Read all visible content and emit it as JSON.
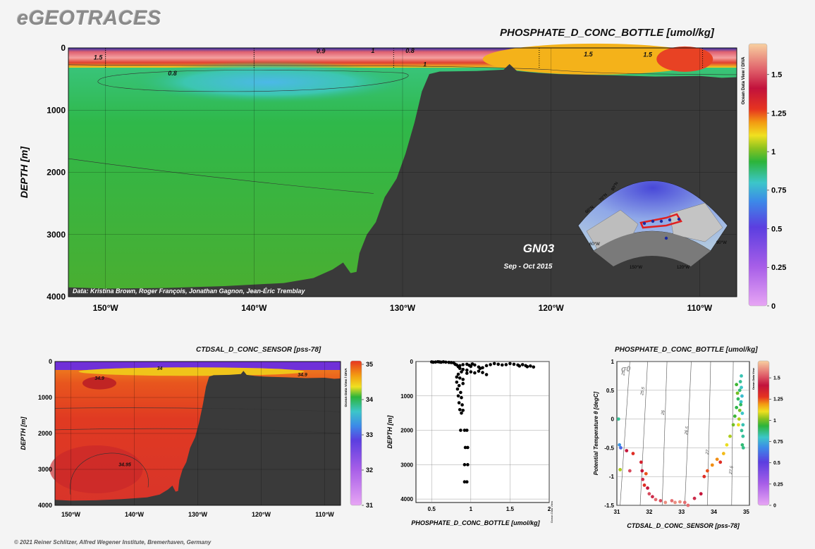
{
  "header": {
    "logo": "eGEOTRACES"
  },
  "footer": {
    "copyright": "© 2021 Reiner Schlitzer, Alfred Wegener Institute, Bremerhaven, Germany"
  },
  "colors": {
    "land": "#3a3a3a",
    "background": "#f4f4f4"
  },
  "chart_data": [
    {
      "id": "main_section",
      "type": "heatmap",
      "title": "PHOSPHATE_D_CONC_BOTTLE [umol/kg]",
      "ylabel": "DEPTH [m]",
      "xlabel": "",
      "x_ticks": [
        "150°W",
        "140°W",
        "130°W",
        "120°W",
        "110°W"
      ],
      "x_tick_values": [
        -150,
        -140,
        -130,
        -120,
        -110
      ],
      "y_ticks": [
        "0",
        "1000",
        "2000",
        "3000",
        "4000"
      ],
      "y_tick_values": [
        0,
        1000,
        2000,
        3000,
        4000
      ],
      "xlim": [
        -152.5,
        -107.5
      ],
      "ylim": [
        0,
        4000
      ],
      "y_reversed": true,
      "colorbar": {
        "ticks": [
          "0",
          "0.25",
          "0.5",
          "0.75",
          "1",
          "1.25",
          "1.5"
        ],
        "values": [
          0,
          0.25,
          0.5,
          0.75,
          1,
          1.25,
          1.5
        ],
        "range": [
          0,
          1.7
        ]
      },
      "contour_labels": [
        {
          "text": "0.9",
          "lon": -135.5,
          "depth": 50
        },
        {
          "text": "1",
          "lon": -132,
          "depth": 45
        },
        {
          "text": "0.8",
          "lon": -129.5,
          "depth": 45
        },
        {
          "text": "1.5",
          "lon": -150.5,
          "depth": 155
        },
        {
          "text": "0.8",
          "lon": -145.5,
          "depth": 410
        },
        {
          "text": "1",
          "lon": -128.5,
          "depth": 265
        },
        {
          "text": "1.5",
          "lon": -117.5,
          "depth": 100
        },
        {
          "text": "1.5",
          "lon": -113.5,
          "depth": 110
        }
      ],
      "annotations": {
        "section": "GN03",
        "date": "Sep - Oct 2015",
        "credits": "Data: Kristina Brown, Roger François, Jonathan Gagnon, Jean-Éric Tremblay",
        "odv": "Ocean Data View / DIVA"
      },
      "map_labels": [
        "80°N",
        "70°N",
        "60°N",
        "150°W",
        "120°W",
        "90°W",
        "60°W"
      ],
      "bathymetry": [
        [
          -152.5,
          3850
        ],
        [
          -150,
          3870
        ],
        [
          -146,
          3860
        ],
        [
          -142,
          3830
        ],
        [
          -138,
          3780
        ],
        [
          -136,
          3700
        ],
        [
          -134.7,
          3560
        ],
        [
          -134,
          3450
        ],
        [
          -133.5,
          3620
        ],
        [
          -133.1,
          3600
        ],
        [
          -132.9,
          3300
        ],
        [
          -132.4,
          3000
        ],
        [
          -131.8,
          2800
        ],
        [
          -131.2,
          2400
        ],
        [
          -130.4,
          2100
        ],
        [
          -129.8,
          1700
        ],
        [
          -129.2,
          1200
        ],
        [
          -128.7,
          700
        ],
        [
          -128.2,
          420
        ],
        [
          -127.5,
          380
        ],
        [
          -125,
          370
        ],
        [
          -123.2,
          350
        ],
        [
          -122.8,
          260
        ],
        [
          -122.3,
          370
        ],
        [
          -121,
          400
        ],
        [
          -119.5,
          420
        ],
        [
          -116,
          440
        ],
        [
          -113,
          460
        ],
        [
          -110,
          450
        ],
        [
          -108.5,
          480
        ],
        [
          -107.5,
          470
        ]
      ]
    },
    {
      "id": "salinity_section",
      "type": "heatmap",
      "title": "CTDSAL_D_CONC_SENSOR [pss-78]",
      "ylabel": "DEPTH [m]",
      "x_ticks": [
        "150°W",
        "140°W",
        "130°W",
        "120°W",
        "110°W"
      ],
      "x_tick_values": [
        -150,
        -140,
        -130,
        -120,
        -110
      ],
      "y_ticks": [
        "0",
        "1000",
        "2000",
        "3000",
        "4000"
      ],
      "y_tick_values": [
        0,
        1000,
        2000,
        3000,
        4000
      ],
      "xlim": [
        -152.5,
        -107.5
      ],
      "ylim": [
        0,
        4000
      ],
      "colorbar": {
        "ticks": [
          "31",
          "32",
          "33",
          "34",
          "35"
        ],
        "values": [
          31,
          32,
          33,
          34,
          35
        ],
        "range": [
          31,
          35.1
        ]
      },
      "contour_labels": [
        {
          "text": "34.9",
          "lon": -145.5,
          "depth": 450
        },
        {
          "text": "34",
          "lon": -136,
          "depth": 180
        },
        {
          "text": "34.9",
          "lon": -113.5,
          "depth": 350
        },
        {
          "text": "34.95",
          "lon": -141.5,
          "depth": 2850
        }
      ],
      "odv": "Ocean Data View / DIVA"
    },
    {
      "id": "phosphate_profile",
      "type": "scatter",
      "xlabel": "PHOSPHATE_D_CONC_BOTTLE [umol/kg]",
      "ylabel": "DEPTH [m]",
      "x_ticks": [
        "0.5",
        "1",
        "1.5",
        "2"
      ],
      "x_tick_values": [
        0.5,
        1,
        1.5,
        2
      ],
      "y_ticks": [
        "0",
        "1000",
        "2000",
        "3000",
        "4000"
      ],
      "y_tick_values": [
        0,
        1000,
        2000,
        3000,
        4000
      ],
      "xlim": [
        0.3,
        2.0
      ],
      "ylim": [
        0,
        4100
      ],
      "odv": "Ocean Data View",
      "points": [
        [
          0.5,
          10
        ],
        [
          0.52,
          20
        ],
        [
          0.55,
          15
        ],
        [
          0.58,
          5
        ],
        [
          0.6,
          12
        ],
        [
          0.62,
          20
        ],
        [
          0.65,
          8
        ],
        [
          0.68,
          18
        ],
        [
          0.72,
          25
        ],
        [
          0.75,
          30
        ],
        [
          0.78,
          35
        ],
        [
          0.8,
          80
        ],
        [
          0.82,
          100
        ],
        [
          0.84,
          150
        ],
        [
          0.86,
          120
        ],
        [
          0.9,
          90
        ],
        [
          0.95,
          80
        ],
        [
          0.98,
          110
        ],
        [
          1.0,
          140
        ],
        [
          1.02,
          70
        ],
        [
          1.05,
          100
        ],
        [
          1.1,
          160
        ],
        [
          1.12,
          200
        ],
        [
          1.15,
          180
        ],
        [
          1.2,
          120
        ],
        [
          1.25,
          90
        ],
        [
          1.3,
          60
        ],
        [
          1.35,
          80
        ],
        [
          1.4,
          100
        ],
        [
          1.45,
          90
        ],
        [
          1.5,
          60
        ],
        [
          1.55,
          80
        ],
        [
          1.6,
          100
        ],
        [
          1.62,
          130
        ],
        [
          1.66,
          90
        ],
        [
          1.7,
          120
        ],
        [
          1.72,
          150
        ],
        [
          1.76,
          130
        ],
        [
          1.8,
          160
        ],
        [
          0.86,
          200
        ],
        [
          0.9,
          230
        ],
        [
          0.95,
          250
        ],
        [
          1.0,
          300
        ],
        [
          1.05,
          330
        ],
        [
          1.1,
          280
        ],
        [
          1.15,
          320
        ],
        [
          1.2,
          380
        ],
        [
          0.95,
          340
        ],
        [
          0.88,
          300
        ],
        [
          0.84,
          370
        ],
        [
          0.82,
          450
        ],
        [
          0.86,
          480
        ],
        [
          0.9,
          520
        ],
        [
          0.82,
          600
        ],
        [
          0.85,
          700
        ],
        [
          0.9,
          640
        ],
        [
          0.83,
          800
        ],
        [
          0.87,
          900
        ],
        [
          0.84,
          1000
        ],
        [
          0.88,
          1050
        ],
        [
          0.85,
          1200
        ],
        [
          0.89,
          1260
        ],
        [
          0.86,
          1400
        ],
        [
          0.9,
          1420
        ],
        [
          0.88,
          1500
        ],
        [
          0.87,
          2000
        ],
        [
          0.92,
          2000
        ],
        [
          0.95,
          2000
        ],
        [
          0.93,
          2500
        ],
        [
          0.96,
          2500
        ],
        [
          0.92,
          3000
        ],
        [
          0.96,
          3000
        ],
        [
          0.92,
          3500
        ],
        [
          0.95,
          3500
        ]
      ]
    },
    {
      "id": "ts_diagram",
      "type": "scatter",
      "title": "PHOSPHATE_D_CONC_BOTTLE [umol/kg]",
      "xlabel": "CTDSAL_D_CONC_SENSOR [pss-78]",
      "ylabel": "Potential Temperature θ [degC]",
      "x_ticks": [
        "31",
        "32",
        "33",
        "34",
        "35"
      ],
      "x_tick_values": [
        31,
        32,
        33,
        34,
        35
      ],
      "y_ticks": [
        "1",
        "0.5",
        "0",
        "-0.5",
        "-1",
        "-1.5"
      ],
      "y_tick_values": [
        1,
        0.5,
        0,
        -0.5,
        -1,
        -1.5
      ],
      "xlim": [
        31,
        35.1
      ],
      "ylim": [
        -1.5,
        1
      ],
      "sigma_label": "σ0",
      "isopycnals": [
        {
          "label": "25",
          "x0": 31.1,
          "x1": 31.05
        },
        {
          "label": "25.5",
          "x0": 31.72,
          "x1": 31.6
        },
        {
          "label": "26",
          "x0": 32.4,
          "x1": 32.2
        },
        {
          "label": "26.5",
          "x0": 33.1,
          "x1": 32.95
        },
        {
          "label": "27",
          "x0": 33.8,
          "x1": 33.55
        },
        {
          "label": "27.5",
          "x0": 34.55,
          "x1": 34.25
        }
      ],
      "colorbar": {
        "ticks": [
          "0",
          "0.25",
          "0.5",
          "0.75",
          "1",
          "1.25",
          "1.5"
        ],
        "values": [
          0,
          0.25,
          0.5,
          0.75,
          1,
          1.25,
          1.5
        ],
        "range": [
          0,
          1.7
        ]
      },
      "odv": "Ocean Data View",
      "points": [
        [
          31.05,
          0,
          0.85
        ],
        [
          31.08,
          -0.45,
          0.7
        ],
        [
          31.1,
          -0.88,
          1.05
        ],
        [
          31.12,
          -0.5,
          0.6
        ],
        [
          31.3,
          -0.55,
          1.4
        ],
        [
          31.4,
          -0.9,
          1.5
        ],
        [
          31.5,
          -0.6,
          1.3
        ],
        [
          31.75,
          -0.75,
          1.35
        ],
        [
          31.78,
          -0.9,
          1.4
        ],
        [
          31.8,
          -1.05,
          1.45
        ],
        [
          31.85,
          -1.15,
          1.3
        ],
        [
          31.9,
          -0.95,
          1.25
        ],
        [
          31.95,
          -1.2,
          1.4
        ],
        [
          32.0,
          -1.3,
          1.5
        ],
        [
          32.1,
          -1.35,
          1.45
        ],
        [
          32.2,
          -1.4,
          1.55
        ],
        [
          32.35,
          -1.42,
          1.5
        ],
        [
          32.5,
          -1.45,
          1.6
        ],
        [
          32.7,
          -1.42,
          1.55
        ],
        [
          32.8,
          -1.45,
          1.6
        ],
        [
          32.95,
          -1.44,
          1.6
        ],
        [
          33.1,
          -1.45,
          1.55
        ],
        [
          33.2,
          -1.5,
          1.55
        ],
        [
          33.4,
          -1.38,
          1.45
        ],
        [
          33.6,
          -1.3,
          1.4
        ],
        [
          33.7,
          -1.0,
          1.3
        ],
        [
          33.8,
          -0.9,
          1.25
        ],
        [
          33.95,
          -0.8,
          1.2
        ],
        [
          34.1,
          -0.7,
          1.2
        ],
        [
          34.2,
          -0.75,
          1.3
        ],
        [
          34.3,
          -0.6,
          1.15
        ],
        [
          34.4,
          -0.45,
          1.1
        ],
        [
          34.5,
          -0.3,
          1.05
        ],
        [
          34.6,
          -0.1,
          1.0
        ],
        [
          34.65,
          0.05,
          0.95
        ],
        [
          34.7,
          0.2,
          0.92
        ],
        [
          34.75,
          0.35,
          0.9
        ],
        [
          34.8,
          0.5,
          0.88
        ],
        [
          34.82,
          0.65,
          0.85
        ],
        [
          34.85,
          0.75,
          0.82
        ],
        [
          34.85,
          0.55,
          0.8
        ],
        [
          34.87,
          0.4,
          0.78
        ],
        [
          34.88,
          0.1,
          0.8
        ],
        [
          34.9,
          -0.1,
          0.82
        ],
        [
          34.9,
          -0.3,
          0.84
        ],
        [
          34.91,
          -0.5,
          0.86
        ],
        [
          34.88,
          -0.45,
          0.88
        ],
        [
          34.86,
          -0.2,
          0.85
        ],
        [
          34.84,
          0.3,
          0.8
        ],
        [
          34.83,
          0.25,
          0.9
        ],
        [
          34.8,
          0.15,
          1.0
        ],
        [
          34.78,
          0.0,
          1.05
        ],
        [
          34.76,
          -0.1,
          1.1
        ],
        [
          34.73,
          0.45,
          1.0
        ],
        [
          34.7,
          0.6,
          0.95
        ]
      ]
    }
  ]
}
